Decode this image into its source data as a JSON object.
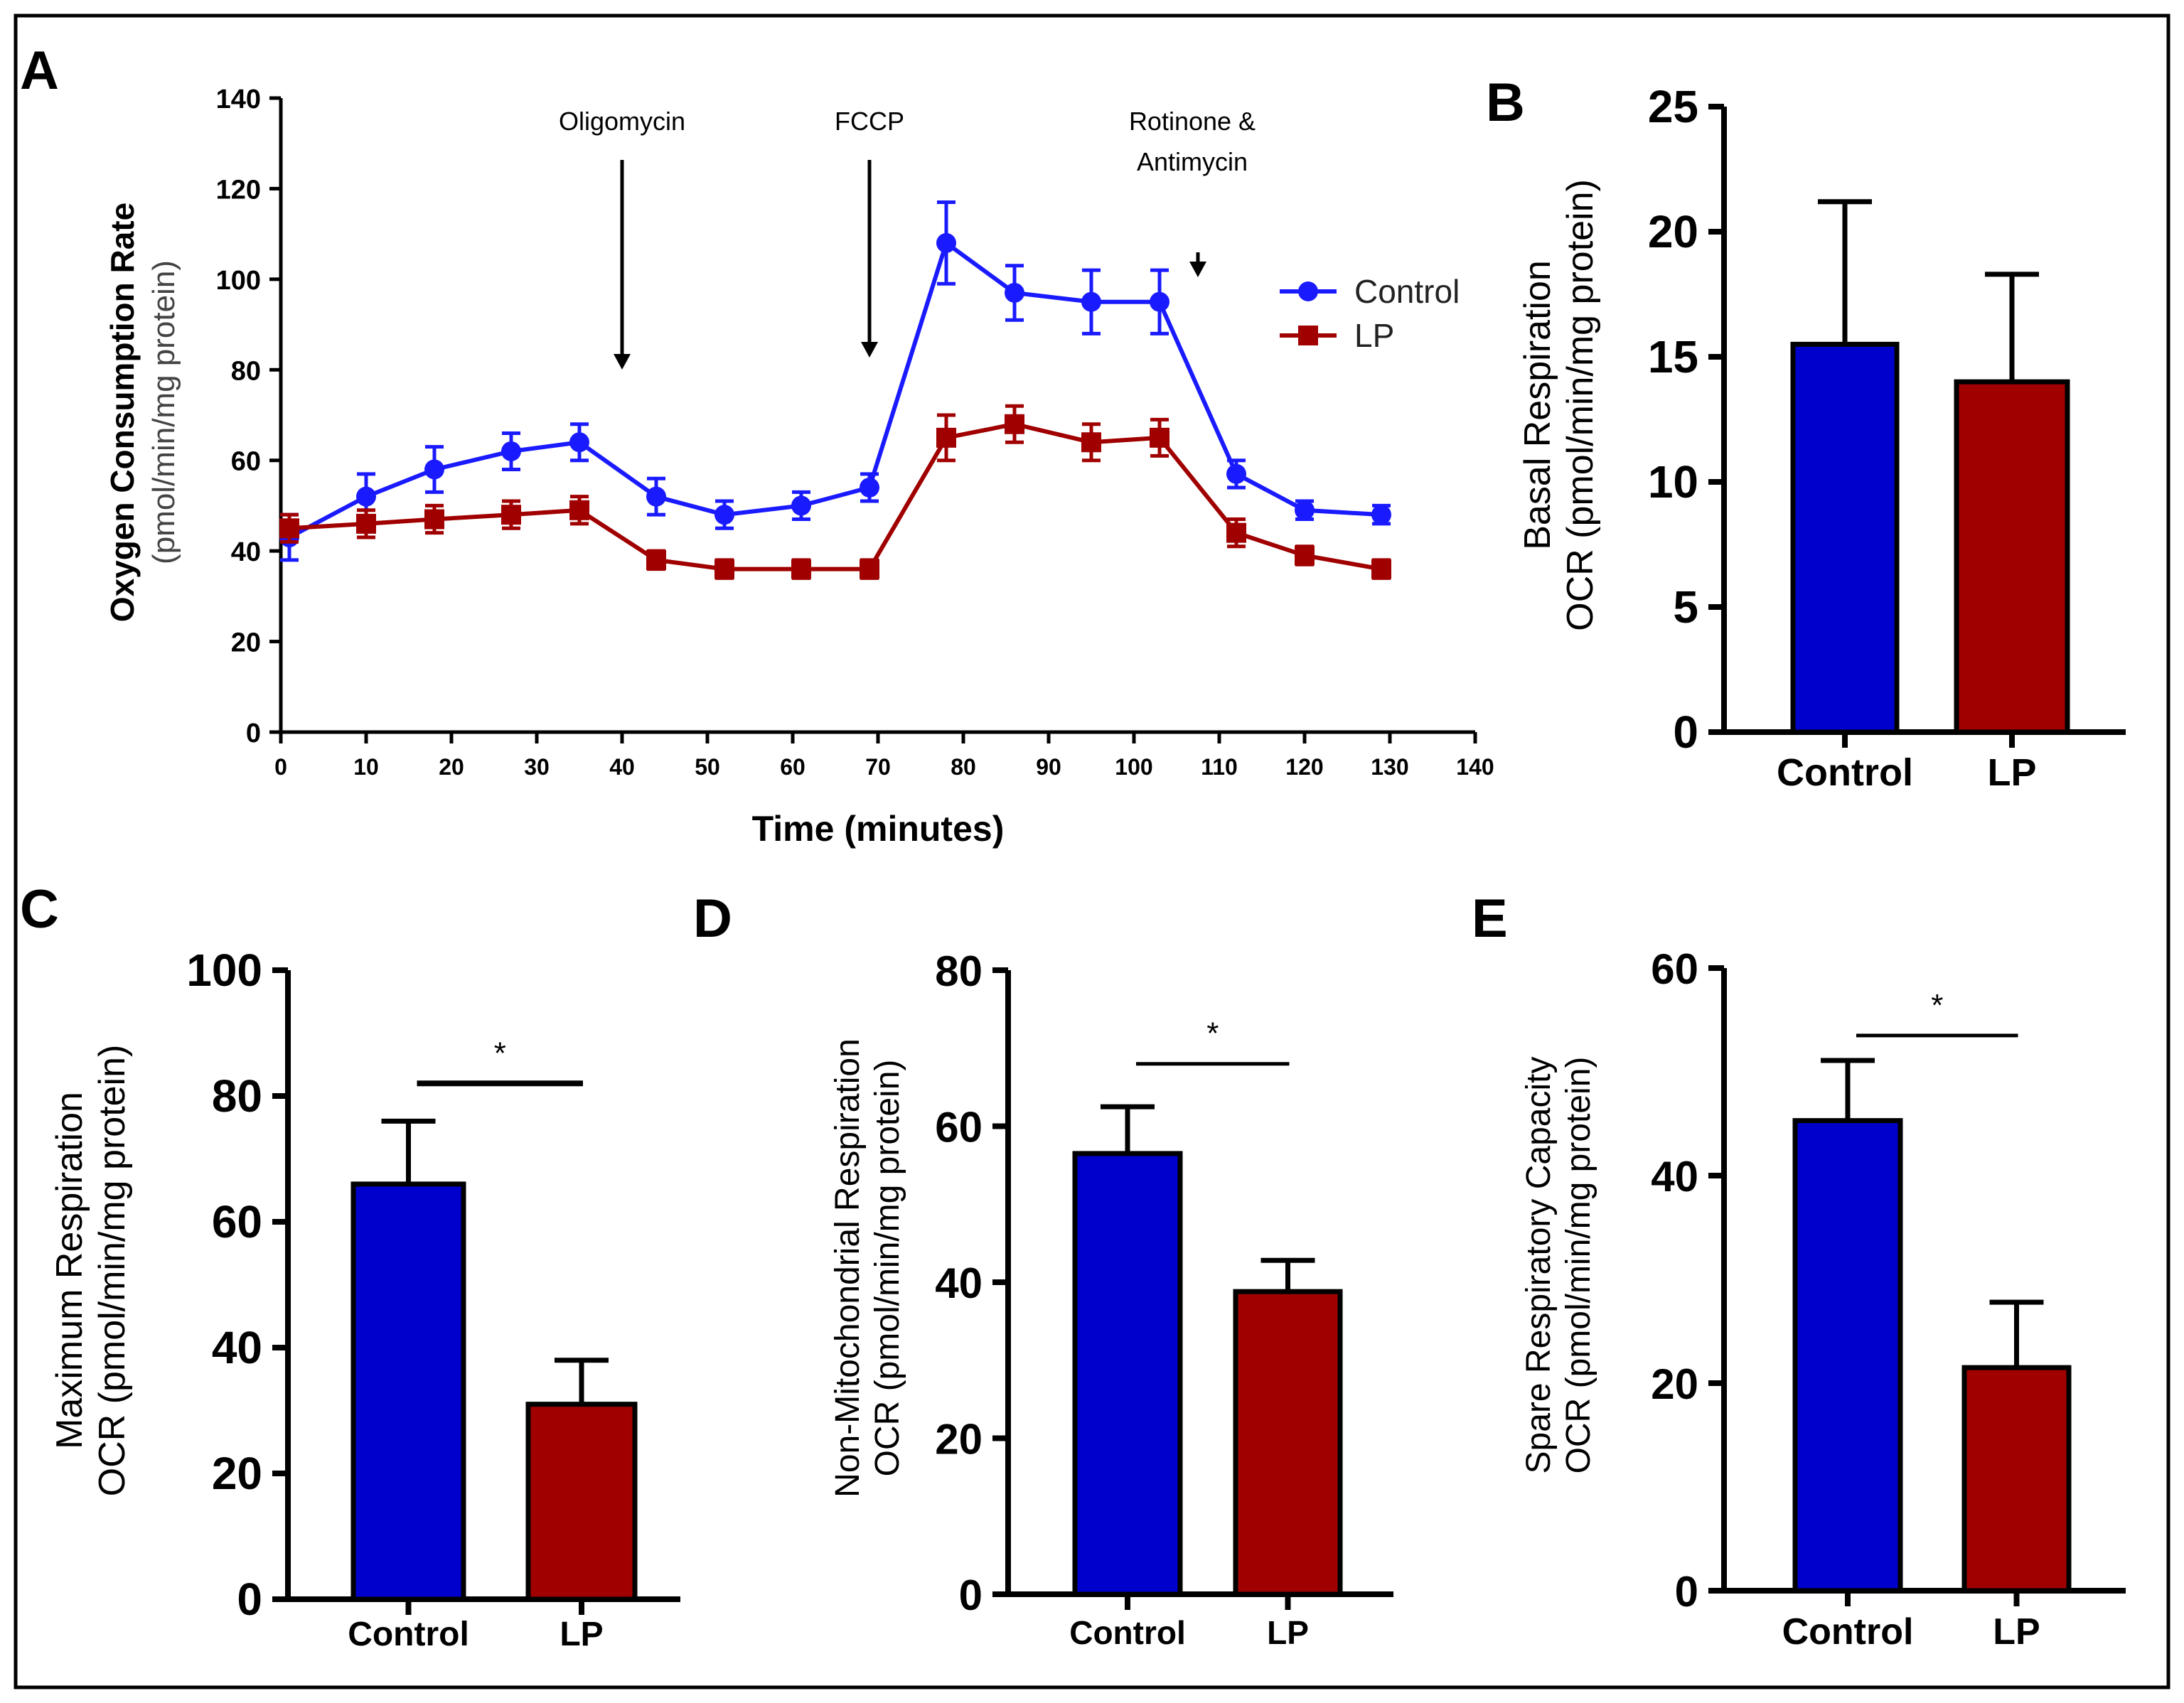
{
  "figure": {
    "border": true
  },
  "colors": {
    "control": "#0000cc",
    "lp": "#a00000",
    "control_line": "#1a1aff",
    "axis": "#000000"
  },
  "chart_data": [
    {
      "panel": "A",
      "type": "line",
      "title": "",
      "xlabel": "Time (minutes)",
      "ylabel": "Oxygen Consumption Rate",
      "ylabel_sub": "(pmol/min/mg protein)",
      "xlim": [
        0,
        140
      ],
      "ylim": [
        0,
        140
      ],
      "xticks": [
        0,
        10,
        20,
        30,
        40,
        50,
        60,
        70,
        80,
        90,
        100,
        110,
        120,
        130,
        140
      ],
      "yticks": [
        0,
        20,
        40,
        60,
        80,
        100,
        120,
        140
      ],
      "legend": {
        "position": "right",
        "entries": [
          "Control",
          "LP"
        ]
      },
      "annotations": [
        {
          "text": [
            "Oligomycin"
          ],
          "x": 40
        },
        {
          "text": [
            "FCCP"
          ],
          "x": 69
        },
        {
          "text": [
            "Rotinone &",
            "Antimycin"
          ],
          "x": 107
        }
      ],
      "x": [
        1,
        10,
        18,
        27,
        35,
        44,
        52,
        61,
        69,
        78,
        86,
        95,
        103,
        112,
        120,
        129
      ],
      "series": [
        {
          "name": "Control",
          "values": [
            43,
            52,
            58,
            62,
            64,
            52,
            48,
            50,
            54,
            108,
            97,
            95,
            95,
            57,
            49,
            48
          ],
          "errors": [
            5,
            5,
            5,
            4,
            4,
            4,
            3,
            3,
            3,
            9,
            6,
            7,
            7,
            3,
            2,
            2
          ]
        },
        {
          "name": "LP",
          "values": [
            45,
            46,
            47,
            48,
            49,
            38,
            36,
            36,
            36,
            65,
            68,
            64,
            65,
            44,
            39,
            36
          ],
          "errors": [
            3,
            3,
            3,
            3,
            3,
            2,
            2,
            2,
            2,
            5,
            4,
            4,
            4,
            3,
            2,
            2
          ]
        }
      ]
    },
    {
      "panel": "B",
      "type": "bar",
      "categories": [
        "Control",
        "LP"
      ],
      "values": [
        15.5,
        14.0
      ],
      "errors": [
        5.7,
        4.3
      ],
      "ylabel": [
        "Basal Respiration",
        "OCR (pmol/min/mg protein)"
      ],
      "ylim": [
        0,
        25
      ],
      "yticks": [
        0,
        5,
        10,
        15,
        20,
        25
      ],
      "significance": ""
    },
    {
      "panel": "C",
      "type": "bar",
      "categories": [
        "Control",
        "LP"
      ],
      "values": [
        66,
        31
      ],
      "errors": [
        10,
        7
      ],
      "ylabel": [
        "Maximum Respiration",
        "OCR (pmol/min/mg protein)"
      ],
      "ylim": [
        0,
        100
      ],
      "yticks": [
        0,
        20,
        40,
        60,
        80,
        100
      ],
      "significance": "*",
      "sig_level": 82
    },
    {
      "panel": "D",
      "type": "bar",
      "categories": [
        "Control",
        "LP"
      ],
      "values": [
        56.5,
        38.8
      ],
      "errors": [
        6,
        4
      ],
      "ylabel": [
        "Non-Mitochondrial Respiration",
        "OCR (pmol/min/mg protein)"
      ],
      "ylim": [
        0,
        80
      ],
      "yticks": [
        0,
        20,
        40,
        60,
        80
      ],
      "significance": "*",
      "sig_level": 68
    },
    {
      "panel": "E",
      "type": "bar",
      "categories": [
        "Control",
        "LP"
      ],
      "values": [
        45.3,
        21.5
      ],
      "errors": [
        5.8,
        6.3
      ],
      "ylabel": [
        "Spare Respiratory Capacity",
        "OCR (pmol/min/mg protein)"
      ],
      "ylim": [
        0,
        60
      ],
      "yticks": [
        0,
        20,
        40,
        60
      ],
      "significance": "*",
      "sig_level": 53.5
    }
  ]
}
